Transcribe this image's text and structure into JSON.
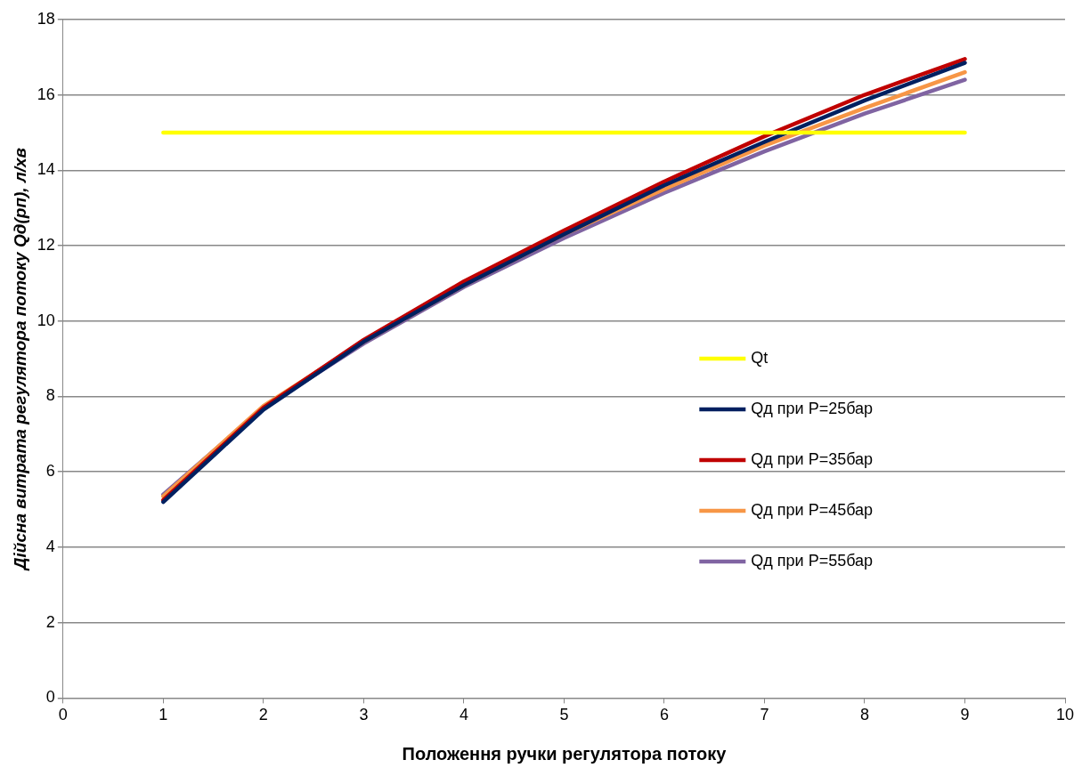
{
  "chart_data": {
    "type": "line",
    "xlabel": "Положення ручки регулятора потоку",
    "ylabel": "Дійсна витрата регулятора потоку Qд(рп), л/хв",
    "x": [
      1,
      2,
      3,
      4,
      5,
      6,
      7,
      8,
      9
    ],
    "xlim": [
      0,
      10
    ],
    "xticks": [
      0,
      1,
      2,
      3,
      4,
      5,
      6,
      7,
      8,
      9,
      10
    ],
    "ylim": [
      0,
      18
    ],
    "yticks": [
      0,
      2,
      4,
      6,
      8,
      10,
      12,
      14,
      16,
      18
    ],
    "grid": "y",
    "legend": "right",
    "marker": "none",
    "line_style": "solid",
    "series": [
      {
        "name": "Qt",
        "color": "#ffff00",
        "x": [
          1,
          9
        ],
        "values": [
          15,
          15
        ]
      },
      {
        "name": "Qд при P=25бар",
        "color": "#002060",
        "values": [
          5.2,
          7.65,
          9.45,
          10.95,
          12.3,
          13.6,
          14.75,
          15.85,
          16.85
        ]
      },
      {
        "name": "Qд при P=35бар",
        "color": "#c00000",
        "values": [
          5.25,
          7.7,
          9.5,
          11.05,
          12.4,
          13.7,
          14.9,
          16.0,
          16.95
        ]
      },
      {
        "name": "Qд при P=45бар",
        "color": "#f79646",
        "values": [
          5.35,
          7.75,
          9.45,
          10.95,
          12.3,
          13.5,
          14.65,
          15.65,
          16.6
        ]
      },
      {
        "name": "Qд при P=55бар",
        "color": "#8064a2",
        "values": [
          5.4,
          7.7,
          9.4,
          10.9,
          12.2,
          13.4,
          14.5,
          15.5,
          16.4
        ]
      }
    ]
  }
}
